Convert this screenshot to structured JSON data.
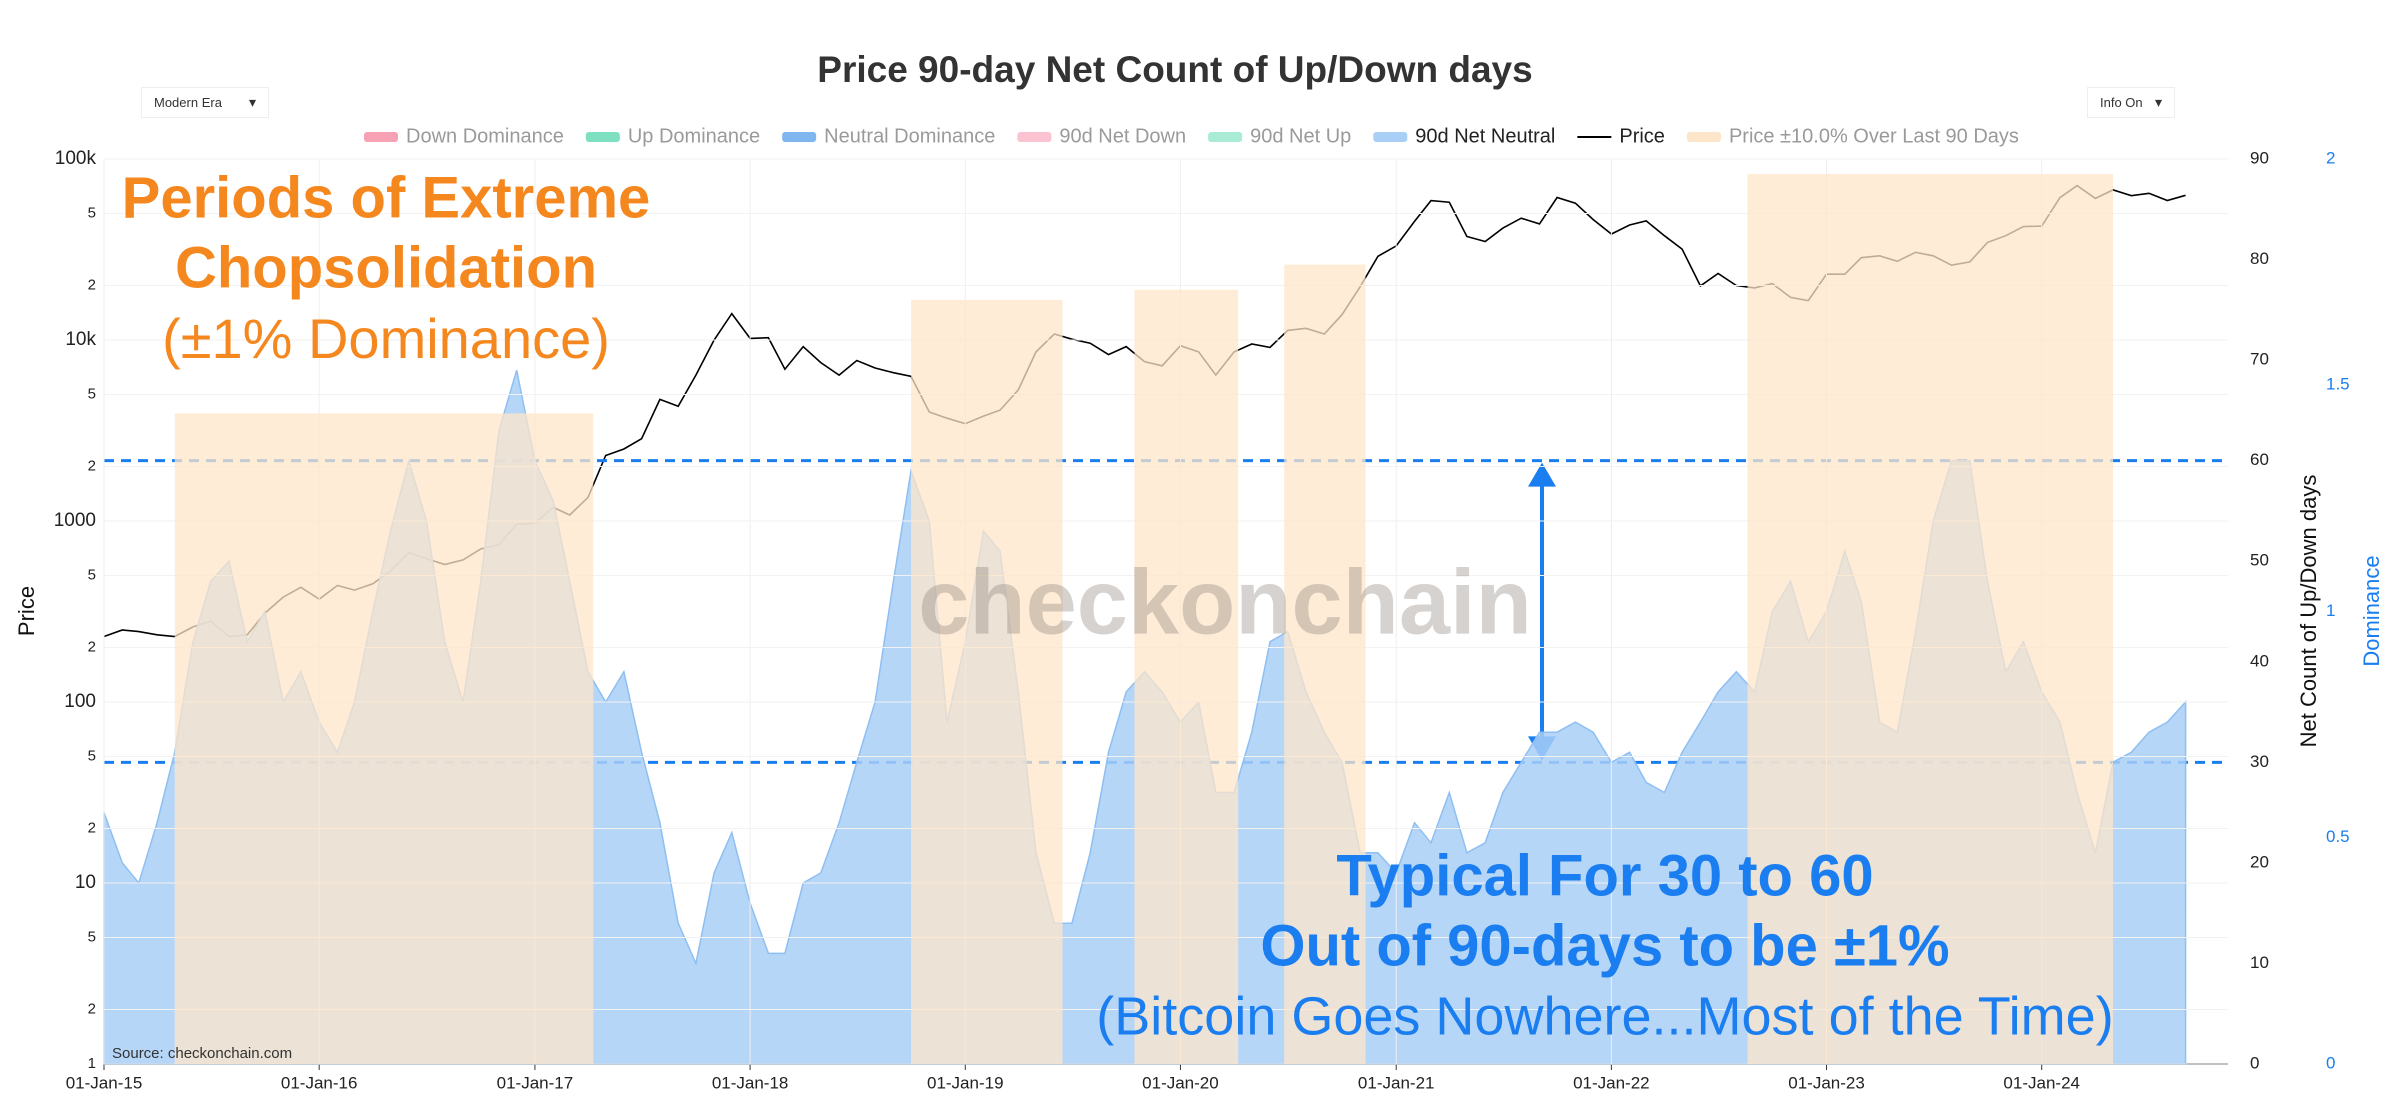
{
  "chart_data": {
    "type": "combo",
    "title": "Price 90-day Net Count of Up/Down days",
    "controls": {
      "era": "Modern Era",
      "info": "Info On"
    },
    "y_label": "Price",
    "y2_label": "Net Count of Up/Down days",
    "y3_label": "Dominance",
    "y_log": true,
    "grid": true,
    "xlim": [
      "2015-01-01",
      "2024-11-12"
    ],
    "xticks": [
      {
        "value": "2015-01-01",
        "label": "01-Jan-15"
      },
      {
        "value": "2016-01-01",
        "label": "01-Jan-16"
      },
      {
        "value": "2017-01-01",
        "label": "01-Jan-17"
      },
      {
        "value": "2018-01-01",
        "label": "01-Jan-18"
      },
      {
        "value": "2019-01-01",
        "label": "01-Jan-19"
      },
      {
        "value": "2020-01-01",
        "label": "01-Jan-20"
      },
      {
        "value": "2021-01-01",
        "label": "01-Jan-21"
      },
      {
        "value": "2022-01-01",
        "label": "01-Jan-22"
      },
      {
        "value": "2023-01-01",
        "label": "01-Jan-23"
      },
      {
        "value": "2024-01-01",
        "label": "01-Jan-24"
      }
    ],
    "ylim": [
      1,
      100000
    ],
    "yticks": [
      1,
      2,
      5,
      10,
      {
        "value": 20,
        "label": "2"
      },
      {
        "value": 50,
        "label": "5"
      },
      100,
      {
        "value": 200,
        "label": "2"
      },
      {
        "value": 500,
        "label": "5"
      },
      1000,
      {
        "value": 2000,
        "label": "2"
      },
      {
        "value": 5000,
        "label": "5"
      },
      {
        "value": 10000,
        "label": "10k"
      },
      {
        "value": 20000,
        "label": "2"
      },
      {
        "value": 50000,
        "label": "5"
      },
      {
        "value": 100000,
        "label": "100k"
      }
    ],
    "y2lim": [
      0,
      90
    ],
    "y2ticks": [
      0,
      10,
      20,
      30,
      40,
      50,
      60,
      70,
      80,
      90
    ],
    "y3lim": [
      0,
      2
    ],
    "y3ticks": [
      0,
      0.5,
      1,
      1.5,
      2
    ],
    "x": [
      "2015-01-01",
      "2015-02-01",
      "2015-03-01",
      "2015-04-01",
      "2015-05-01",
      "2015-06-01",
      "2015-07-01",
      "2015-08-01",
      "2015-09-01",
      "2015-10-01",
      "2015-11-01",
      "2015-12-01",
      "2016-01-01",
      "2016-02-01",
      "2016-03-01",
      "2016-04-01",
      "2016-05-01",
      "2016-06-01",
      "2016-07-01",
      "2016-08-01",
      "2016-09-01",
      "2016-10-01",
      "2016-11-01",
      "2016-12-01",
      "2017-01-01",
      "2017-02-01",
      "2017-03-01",
      "2017-04-01",
      "2017-05-01",
      "2017-06-01",
      "2017-07-01",
      "2017-08-01",
      "2017-09-01",
      "2017-10-01",
      "2017-11-01",
      "2017-12-01",
      "2018-01-01",
      "2018-02-01",
      "2018-03-01",
      "2018-04-01",
      "2018-05-01",
      "2018-06-01",
      "2018-07-01",
      "2018-08-01",
      "2018-09-01",
      "2018-10-01",
      "2018-11-01",
      "2018-12-01",
      "2019-01-01",
      "2019-02-01",
      "2019-03-01",
      "2019-04-01",
      "2019-05-01",
      "2019-06-01",
      "2019-07-01",
      "2019-08-01",
      "2019-09-01",
      "2019-10-01",
      "2019-11-01",
      "2019-12-01",
      "2020-01-01",
      "2020-02-01",
      "2020-03-01",
      "2020-04-01",
      "2020-05-01",
      "2020-06-01",
      "2020-07-01",
      "2020-08-01",
      "2020-09-01",
      "2020-10-01",
      "2020-11-01",
      "2020-12-01",
      "2021-01-01",
      "2021-02-01",
      "2021-03-01",
      "2021-04-01",
      "2021-05-01",
      "2021-06-01",
      "2021-07-01",
      "2021-08-01",
      "2021-09-01",
      "2021-10-01",
      "2021-11-01",
      "2021-12-01",
      "2022-01-01",
      "2022-02-01",
      "2022-03-01",
      "2022-04-01",
      "2022-05-01",
      "2022-06-01",
      "2022-07-01",
      "2022-08-01",
      "2022-09-01",
      "2022-10-01",
      "2022-11-01",
      "2022-12-01",
      "2023-01-01",
      "2023-02-01",
      "2023-03-01",
      "2023-04-01",
      "2023-05-01",
      "2023-06-01",
      "2023-07-01",
      "2023-08-01",
      "2023-09-01",
      "2023-10-01",
      "2023-11-01",
      "2023-12-01",
      "2024-01-01",
      "2024-02-01",
      "2024-03-01",
      "2024-04-01",
      "2024-05-01",
      "2024-06-01",
      "2024-07-01",
      "2024-08-01",
      "2024-09-01"
    ],
    "series": [
      {
        "name": "Down Dominance",
        "color": "#f7a1b5",
        "visible": false
      },
      {
        "name": "Up Dominance",
        "color": "#7ee0c0",
        "visible": false
      },
      {
        "name": "Neutral Dominance",
        "color": "#7fb6f0",
        "visible": false
      },
      {
        "name": "90d Net Down",
        "color": "#fbc2d2",
        "visible": false
      },
      {
        "name": "90d Net Up",
        "color": "#a9ebd5",
        "visible": false
      },
      {
        "name": "90d Net Neutral",
        "color": "#a9cff7",
        "visible": true,
        "kind": "area",
        "axis": "y2",
        "values": [
          25,
          20,
          18,
          24,
          31,
          42,
          48,
          50,
          42,
          45,
          36,
          39,
          34,
          31,
          36,
          45,
          53,
          60,
          54,
          42,
          36,
          48,
          63,
          69,
          60,
          56,
          48,
          39,
          36,
          39,
          31,
          24,
          14,
          10,
          19,
          23,
          16,
          11,
          11,
          18,
          19,
          24,
          30,
          36,
          48,
          59,
          54,
          34,
          42,
          53,
          51,
          37,
          21,
          14,
          14,
          21,
          31,
          37,
          39,
          37,
          34,
          36,
          27,
          27,
          33,
          42,
          43,
          37,
          33,
          30,
          21,
          21,
          19,
          24,
          22,
          27,
          21,
          22,
          27,
          30,
          33,
          33,
          34,
          33,
          30,
          31,
          28,
          27,
          31,
          34,
          37,
          39,
          37,
          45,
          48,
          42,
          45,
          51,
          46,
          34,
          33,
          43,
          54,
          60,
          60,
          48,
          39,
          42,
          37,
          34,
          27,
          21,
          30,
          31,
          33,
          34,
          36
        ]
      },
      {
        "name": "Price",
        "color": "#000000",
        "visible": true,
        "kind": "line",
        "axis": "y",
        "values": [
          230,
          250,
          245,
          235,
          230,
          260,
          280,
          230,
          235,
          310,
          380,
          430,
          370,
          440,
          415,
          450,
          530,
          670,
          620,
          575,
          610,
          700,
          740,
          960,
          970,
          1190,
          1080,
          1350,
          2300,
          2500,
          2850,
          4700,
          4300,
          6400,
          10000,
          14000,
          10200,
          10300,
          6900,
          9200,
          7500,
          6400,
          7700,
          7000,
          6600,
          6300,
          4000,
          3700,
          3450,
          3800,
          4100,
          5300,
          8600,
          10800,
          10100,
          9600,
          8300,
          9200,
          7600,
          7200,
          9300,
          8600,
          6400,
          8600,
          9500,
          9100,
          11300,
          11600,
          10800,
          13800,
          19700,
          29000,
          33100,
          45200,
          58900,
          57700,
          37300,
          35000,
          41500,
          47100,
          43800,
          61300,
          57000,
          46300,
          38500,
          43200,
          45500,
          37700,
          31800,
          19900,
          23300,
          20000,
          19400,
          20500,
          17200,
          16500,
          23100,
          23100,
          28500,
          29200,
          27200,
          30500,
          29200,
          25900,
          27000,
          34600,
          37700,
          42300,
          42600,
          61200,
          71300,
          60600,
          67500,
          62700,
          64600,
          59000,
          63000
        ]
      },
      {
        "name": "Price ±10.0% Over Last 90 Days",
        "color": "#fde5c9",
        "visible": true,
        "kind": "span",
        "axis": "y2",
        "spans": [
          {
            "start": "2015-05-01",
            "end": "2017-04-10",
            "height": 64.7
          },
          {
            "start": "2018-10-01",
            "end": "2019-06-15",
            "height": 76
          },
          {
            "start": "2019-10-15",
            "end": "2020-04-08",
            "height": 77
          },
          {
            "start": "2020-06-25",
            "end": "2020-11-10",
            "height": 79.5
          },
          {
            "start": "2022-08-20",
            "end": "2024-05-01",
            "height": 88.5
          }
        ]
      }
    ],
    "hlines": [
      {
        "value": 60,
        "axis": "y2"
      },
      {
        "value": 30,
        "axis": "y2"
      }
    ],
    "hline_color": "#1a7ef0",
    "annotations": [
      "Periods of Extreme",
      "Chopsolidation",
      "(±1% Dominance)",
      "Typical For 30 to 60",
      "Out of 90-days to be ±1%",
      "(Bitcoin Goes Nowhere...Most of the Time)"
    ],
    "watermark": "checkonchain",
    "source": "Source: checkonchain.com"
  }
}
